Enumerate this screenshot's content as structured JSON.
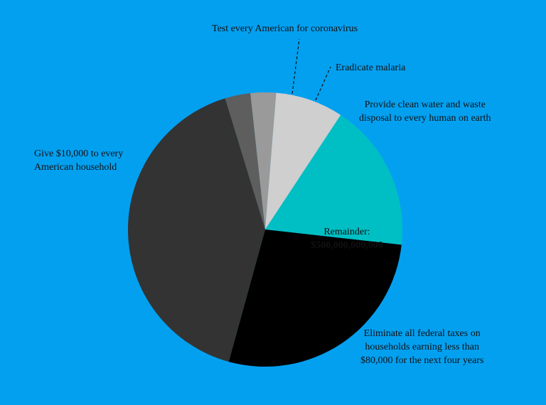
{
  "chart_data": {
    "type": "pie",
    "slices": [
      {
        "label": "Test every American for coronavirus",
        "value": 3.0,
        "color": "#5e5e5e"
      },
      {
        "label": "Eradicate malaria",
        "value": 3.0,
        "color": "#9a9a9a"
      },
      {
        "label": "Provide clean water and waste disposal to every human on earth",
        "value": 8.0,
        "color": "#cfcfcf"
      },
      {
        "label": "Remainder: $500,000,000,000",
        "value": 17.5,
        "color": "#00bfc4"
      },
      {
        "label": "Eliminate all federal taxes on households earning less than $80,000 for the next four years",
        "value": 27.5,
        "color": "#000000"
      },
      {
        "label": "Give $10,000 to every American household",
        "value": 41.0,
        "color": "#333333"
      }
    ]
  },
  "labels": {
    "testing": "Test every American for coronavirus",
    "malaria": "Eradicate malaria",
    "water": "Provide clean water and waste\ndisposal to every human on earth",
    "remainder_title": "Remainder:",
    "remainder_amount": "$500,000,000,000",
    "taxes": "Eliminate all federal taxes on\nhouseholds earning less than\n$80,000 for the next four years",
    "household": "Give $10,000 to every\nAmerican household"
  },
  "colors": {
    "background": "#03a0f0"
  }
}
